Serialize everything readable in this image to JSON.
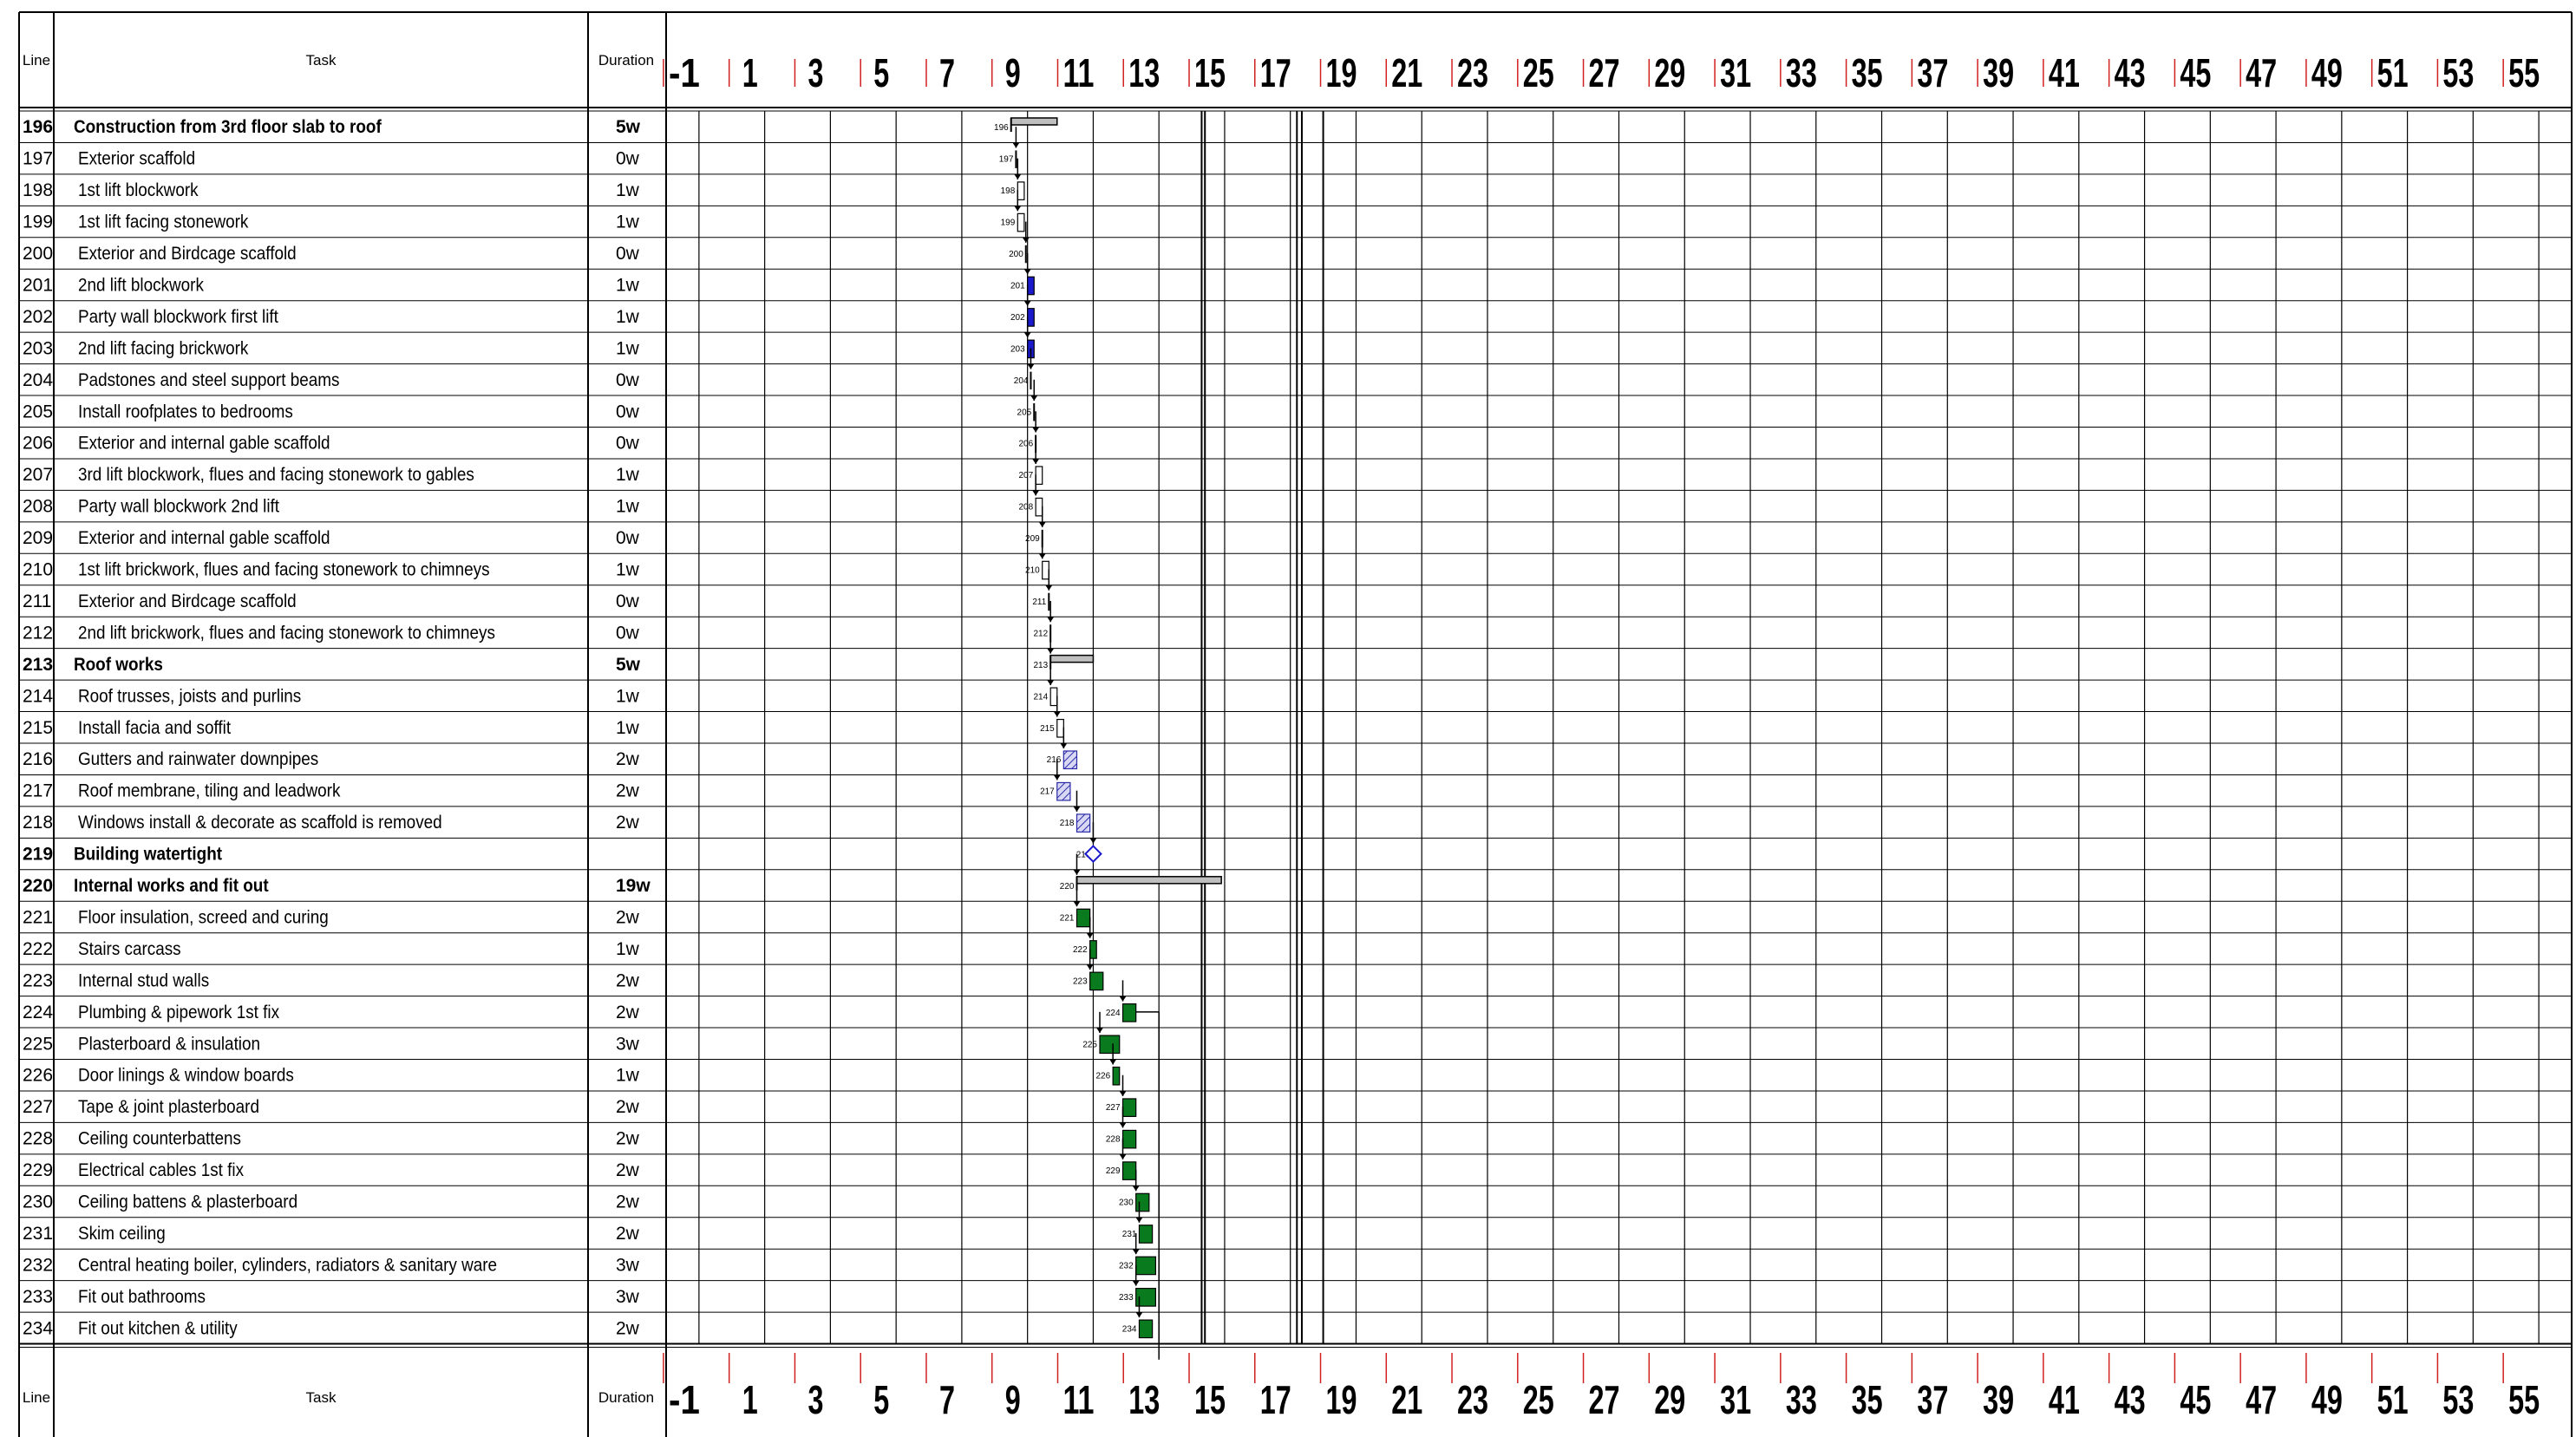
{
  "header": {
    "line_label": "Line",
    "task_label": "Task",
    "duration_label": "Duration"
  },
  "chart_data": {
    "type": "gantt",
    "x_axis": {
      "unit": "week",
      "range": [
        -1.5,
        56.5
      ],
      "tick_labels": [
        "-1",
        "1",
        "3",
        "5",
        "7",
        "9",
        "11",
        "13",
        "15",
        "17",
        "19",
        "21",
        "23",
        "25",
        "27",
        "29",
        "31",
        "33",
        "35",
        "37",
        "39",
        "41",
        "43",
        "45",
        "47",
        "49",
        "51",
        "53",
        "55"
      ]
    },
    "colors": {
      "summary_bar": "#bfbfbf",
      "task_blue": "#1a1acc",
      "task_green": "#0a7a1e",
      "hatched_bar": "#c8c8ee",
      "grid_line": "#000000",
      "tick_red": "#d02020"
    },
    "tasks": [
      {
        "line": "196",
        "name": "Construction from 3rd floor slab to roof",
        "duration": "5w",
        "bold": true,
        "start": 9.0,
        "end": 10.4,
        "kind": "summary"
      },
      {
        "line": "197",
        "name": "Exterior scaffold",
        "duration": "0w",
        "start": 9.15,
        "end": 9.15,
        "kind": "zero"
      },
      {
        "line": "198",
        "name": "1st lift blockwork",
        "duration": "1w",
        "start": 9.2,
        "end": 9.4,
        "kind": "open"
      },
      {
        "line": "199",
        "name": "1st lift facing stonework",
        "duration": "1w",
        "start": 9.2,
        "end": 9.4,
        "kind": "open"
      },
      {
        "line": "200",
        "name": "Exterior and Birdcage scaffold",
        "duration": "0w",
        "start": 9.45,
        "end": 9.45,
        "kind": "zero"
      },
      {
        "line": "201",
        "name": "2nd lift blockwork",
        "duration": "1w",
        "start": 9.5,
        "end": 9.7,
        "kind": "blue"
      },
      {
        "line": "202",
        "name": "Party wall blockwork first lift",
        "duration": "1w",
        "start": 9.5,
        "end": 9.7,
        "kind": "blue"
      },
      {
        "line": "203",
        "name": "2nd lift facing brickwork",
        "duration": "1w",
        "start": 9.5,
        "end": 9.7,
        "kind": "blue"
      },
      {
        "line": "204",
        "name": "Padstones and steel support beams",
        "duration": "0w",
        "start": 9.6,
        "end": 9.6,
        "kind": "zero"
      },
      {
        "line": "205",
        "name": "Install roofplates to bedrooms",
        "duration": "0w",
        "start": 9.7,
        "end": 9.7,
        "kind": "zero"
      },
      {
        "line": "206",
        "name": "Exterior and internal gable scaffold",
        "duration": "0w",
        "start": 9.75,
        "end": 9.75,
        "kind": "zero"
      },
      {
        "line": "207",
        "name": "3rd lift blockwork, flues and facing stonework to gables",
        "duration": "1w",
        "start": 9.75,
        "end": 9.95,
        "kind": "open"
      },
      {
        "line": "208",
        "name": "Party wall blockwork 2nd lift",
        "duration": "1w",
        "start": 9.75,
        "end": 9.95,
        "kind": "open"
      },
      {
        "line": "209",
        "name": "Exterior and internal gable scaffold",
        "duration": "0w",
        "start": 9.95,
        "end": 9.95,
        "kind": "zero"
      },
      {
        "line": "210",
        "name": "1st lift brickwork, flues and facing stonework to chimneys",
        "duration": "1w",
        "start": 9.95,
        "end": 10.15,
        "kind": "open"
      },
      {
        "line": "211",
        "name": "Exterior and Birdcage scaffold",
        "duration": "0w",
        "start": 10.15,
        "end": 10.15,
        "kind": "zero"
      },
      {
        "line": "212",
        "name": "2nd lift brickwork, flues and facing stonework to chimneys",
        "duration": "0w",
        "start": 10.2,
        "end": 10.2,
        "kind": "zero"
      },
      {
        "line": "213",
        "name": "Roof works",
        "duration": "5w",
        "bold": true,
        "start": 10.2,
        "end": 11.5,
        "kind": "summary"
      },
      {
        "line": "214",
        "name": "Roof trusses, joists and purlins",
        "duration": "1w",
        "start": 10.2,
        "end": 10.4,
        "kind": "open"
      },
      {
        "line": "215",
        "name": "Install facia and soffit",
        "duration": "1w",
        "start": 10.4,
        "end": 10.6,
        "kind": "open"
      },
      {
        "line": "216",
        "name": "Gutters and rainwater downpipes",
        "duration": "2w",
        "start": 10.6,
        "end": 11.0,
        "kind": "hatched"
      },
      {
        "line": "217",
        "name": "Roof membrane, tiling and leadwork",
        "duration": "2w",
        "start": 10.4,
        "end": 10.8,
        "kind": "hatched"
      },
      {
        "line": "218",
        "name": "Windows install & decorate as scaffold is removed",
        "duration": "2w",
        "start": 11.0,
        "end": 11.4,
        "kind": "hatched"
      },
      {
        "line": "219",
        "name": "Building watertight",
        "duration": "",
        "bold": true,
        "start": 11.5,
        "end": 11.5,
        "kind": "milestone"
      },
      {
        "line": "220",
        "name": "Internal works and fit out",
        "duration": "19w",
        "bold": true,
        "start": 11.0,
        "end": 15.4,
        "kind": "summary"
      },
      {
        "line": "221",
        "name": "Floor insulation, screed and curing",
        "duration": "2w",
        "start": 11.0,
        "end": 11.4,
        "kind": "green"
      },
      {
        "line": "222",
        "name": "Stairs carcass",
        "duration": "1w",
        "start": 11.4,
        "end": 11.6,
        "kind": "green"
      },
      {
        "line": "223",
        "name": "Internal stud walls",
        "duration": "2w",
        "start": 11.4,
        "end": 11.8,
        "kind": "green"
      },
      {
        "line": "224",
        "name": "Plumbing & pipework 1st fix",
        "duration": "2w",
        "start": 12.4,
        "end": 12.8,
        "kind": "green"
      },
      {
        "line": "225",
        "name": "Plasterboard & insulation",
        "duration": "3w",
        "start": 11.7,
        "end": 12.3,
        "kind": "green"
      },
      {
        "line": "226",
        "name": "Door linings & window boards",
        "duration": "1w",
        "start": 12.1,
        "end": 12.3,
        "kind": "green"
      },
      {
        "line": "227",
        "name": "Tape & joint plasterboard",
        "duration": "2w",
        "start": 12.4,
        "end": 12.8,
        "kind": "green"
      },
      {
        "line": "228",
        "name": "Ceiling counterbattens",
        "duration": "2w",
        "start": 12.4,
        "end": 12.8,
        "kind": "green"
      },
      {
        "line": "229",
        "name": "Electrical cables 1st fix",
        "duration": "2w",
        "start": 12.4,
        "end": 12.8,
        "kind": "green"
      },
      {
        "line": "230",
        "name": "Ceiling battens & plasterboard",
        "duration": "2w",
        "start": 12.8,
        "end": 13.2,
        "kind": "green"
      },
      {
        "line": "231",
        "name": "Skim ceiling",
        "duration": "2w",
        "start": 12.9,
        "end": 13.3,
        "kind": "green"
      },
      {
        "line": "232",
        "name": "Central heating boiler, cylinders, radiators & sanitary ware",
        "duration": "3w",
        "start": 12.8,
        "end": 13.4,
        "kind": "green"
      },
      {
        "line": "233",
        "name": "Fit out bathrooms",
        "duration": "3w",
        "start": 12.8,
        "end": 13.4,
        "kind": "green"
      },
      {
        "line": "234",
        "name": "Fit out kitchen & utility",
        "duration": "2w",
        "start": 12.9,
        "end": 13.3,
        "kind": "green"
      }
    ]
  }
}
